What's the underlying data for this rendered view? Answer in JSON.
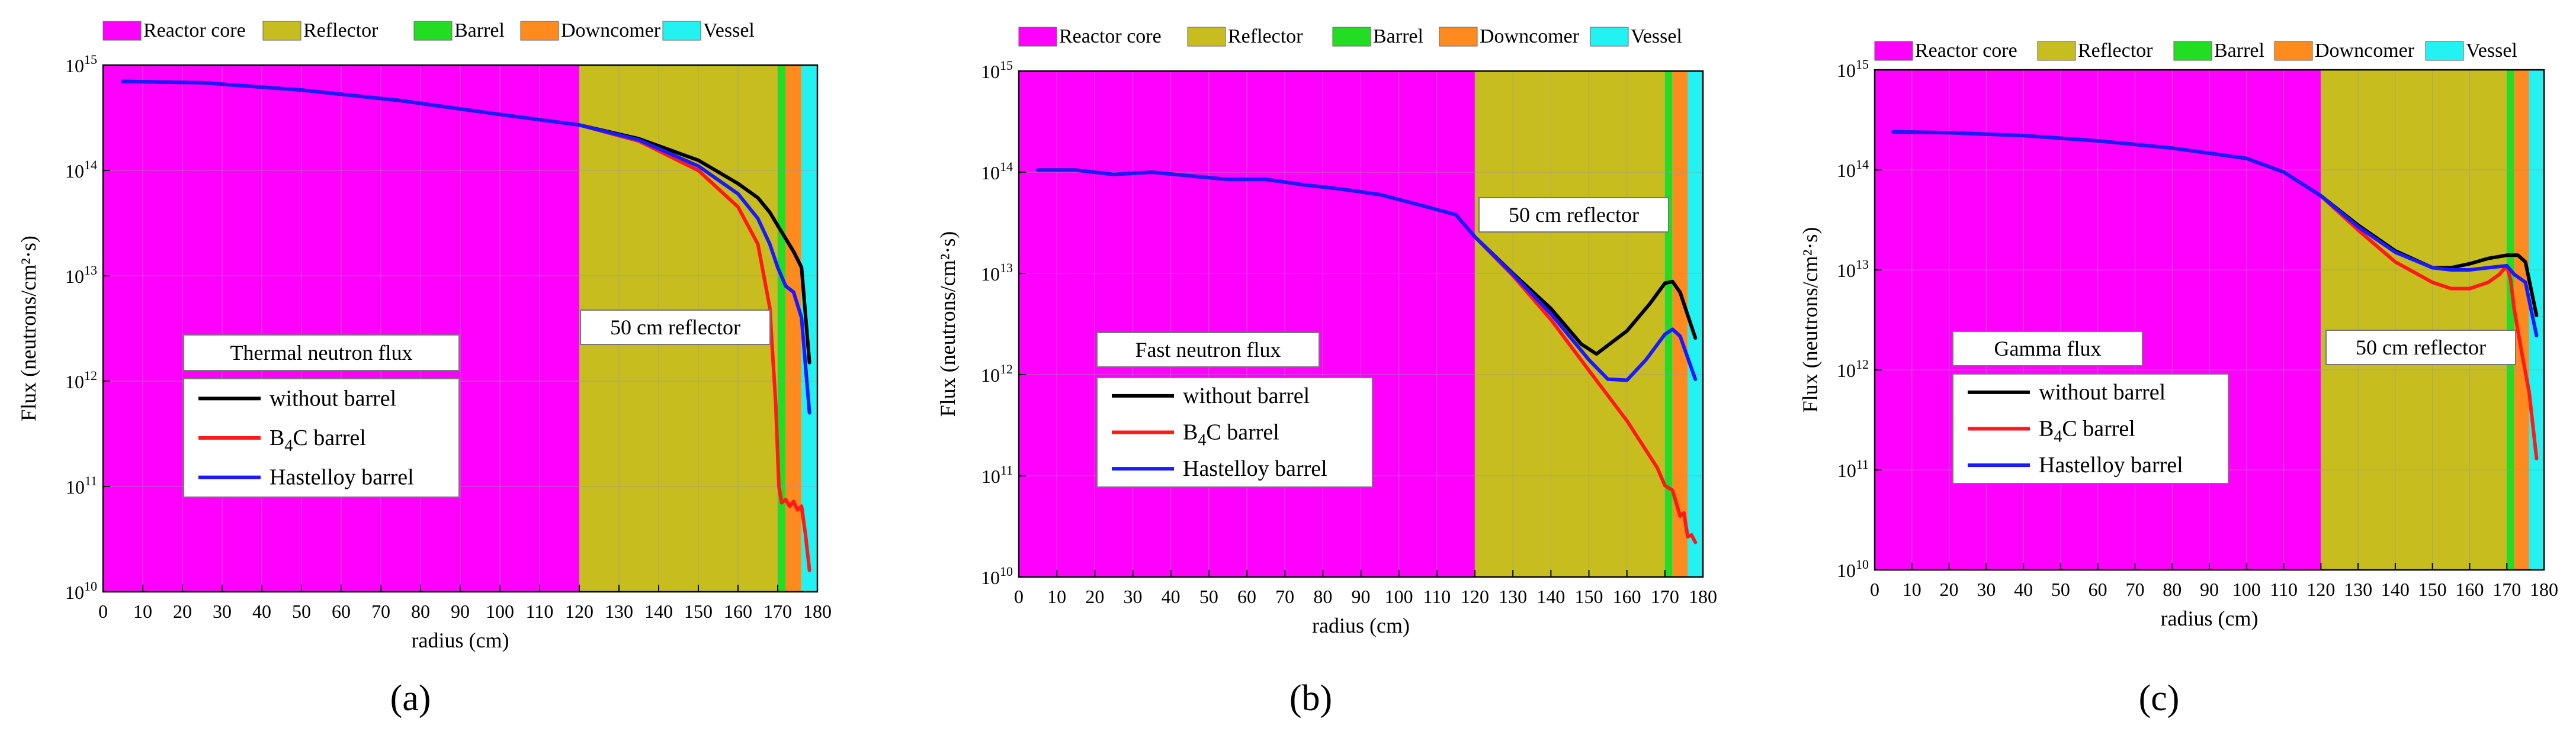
{
  "zones": [
    {
      "name": "Reactor core",
      "color": "#ff00ff",
      "from": 0,
      "to": 120
    },
    {
      "name": "Reflector",
      "color": "#c8bd1e",
      "from": 120,
      "to": 170
    },
    {
      "name": "Barrel",
      "color": "#22dd22",
      "from": 170,
      "to": 172
    },
    {
      "name": "Downcomer",
      "color": "#ff8a1e",
      "from": 172,
      "to": 176
    },
    {
      "name": "Vessel",
      "color": "#22f2f2",
      "from": 176,
      "to": 180
    }
  ],
  "series_styles": [
    {
      "key": "without",
      "label": "without barrel",
      "color": "#000000"
    },
    {
      "key": "b4c",
      "label_pre": "B",
      "label_sub": "4",
      "label_post": "C barrel",
      "color": "#ff1a1a"
    },
    {
      "key": "hast",
      "label": "Hastelloy barrel",
      "color": "#1a1aff"
    }
  ],
  "chart_data": [
    {
      "type": "line",
      "panel_label": "(a)",
      "title": "Thermal neutron flux",
      "annotation": "50 cm reflector",
      "xlabel": "radius (cm)",
      "ylabel": "Flux (neutrons/cm²·s)",
      "yscale": "log",
      "xlim": [
        0,
        180
      ],
      "ylim": [
        10000000000.0,
        1000000000000000.0
      ],
      "xticks": [
        0,
        10,
        20,
        30,
        40,
        50,
        60,
        70,
        80,
        90,
        100,
        110,
        120,
        130,
        140,
        150,
        160,
        170,
        180
      ],
      "ytick_exponents": [
        10,
        11,
        12,
        13,
        14,
        15
      ],
      "series": [
        {
          "name": "without barrel",
          "x": [
            5,
            25,
            50,
            75,
            100,
            120,
            135,
            150,
            160,
            165,
            168,
            171,
            174,
            176,
            178
          ],
          "y": [
            700000000000000.0,
            680000000000000.0,
            580000000000000.0,
            460000000000000.0,
            340000000000000.0,
            270000000000000.0,
            200000000000000.0,
            125000000000000.0,
            75000000000000.0,
            55000000000000.0,
            40000000000000.0,
            26000000000000.0,
            17000000000000.0,
            12000000000000.0,
            1500000000000.0
          ]
        },
        {
          "name": "B4C barrel",
          "x": [
            5,
            25,
            50,
            75,
            100,
            120,
            135,
            150,
            160,
            165,
            168,
            169.5,
            170.3,
            171,
            172,
            173,
            174,
            175,
            176,
            177,
            178
          ],
          "y": [
            700000000000000.0,
            680000000000000.0,
            580000000000000.0,
            460000000000000.0,
            340000000000000.0,
            270000000000000.0,
            190000000000000.0,
            100000000000000.0,
            45000000000000.0,
            20000000000000.0,
            5000000000000.0,
            600000000000.0,
            100000000000.0,
            70000000000.0,
            75000000000.0,
            65000000000.0,
            72000000000.0,
            60000000000.0,
            65000000000.0,
            35000000000.0,
            16000000000.0
          ]
        },
        {
          "name": "Hastelloy barrel",
          "x": [
            5,
            25,
            50,
            75,
            100,
            120,
            135,
            150,
            160,
            165,
            168,
            170,
            172,
            174,
            176,
            178
          ],
          "y": [
            700000000000000.0,
            680000000000000.0,
            580000000000000.0,
            460000000000000.0,
            340000000000000.0,
            270000000000000.0,
            195000000000000.0,
            110000000000000.0,
            60000000000000.0,
            35000000000000.0,
            20000000000000.0,
            12000000000000.0,
            8000000000000.0,
            7000000000000.0,
            4000000000000.0,
            500000000000.0
          ]
        }
      ]
    },
    {
      "type": "line",
      "panel_label": "(b)",
      "title": "Fast neutron flux",
      "annotation": "50 cm reflector",
      "xlabel": "radius (cm)",
      "ylabel": "Flux (neutrons/cm²·s)",
      "yscale": "log",
      "xlim": [
        0,
        180
      ],
      "ylim": [
        10000000000.0,
        1000000000000000.0
      ],
      "xticks": [
        0,
        10,
        20,
        30,
        40,
        50,
        60,
        70,
        80,
        90,
        100,
        110,
        120,
        130,
        140,
        150,
        160,
        170,
        180
      ],
      "ytick_exponents": [
        10,
        11,
        12,
        13,
        14,
        15
      ],
      "series": [
        {
          "name": "without barrel",
          "x": [
            5,
            15,
            25,
            35,
            45,
            55,
            65,
            75,
            85,
            95,
            105,
            115,
            120,
            130,
            140,
            148,
            152,
            160,
            166,
            170,
            172,
            174,
            178
          ],
          "y": [
            105000000000000.0,
            105000000000000.0,
            95000000000000.0,
            100000000000000.0,
            92000000000000.0,
            85000000000000.0,
            85000000000000.0,
            75000000000000.0,
            68000000000000.0,
            60000000000000.0,
            48000000000000.0,
            38000000000000.0,
            23000000000000.0,
            10000000000000.0,
            4500000000000.0,
            2000000000000.0,
            1600000000000.0,
            2700000000000.0,
            5000000000000.0,
            8000000000000.0,
            8300000000000.0,
            6500000000000.0,
            2300000000000.0
          ]
        },
        {
          "name": "B4C barrel",
          "x": [
            5,
            15,
            25,
            35,
            45,
            55,
            65,
            75,
            85,
            95,
            105,
            115,
            120,
            130,
            140,
            150,
            160,
            168,
            170,
            172,
            174,
            175,
            176,
            177,
            178
          ],
          "y": [
            105000000000000.0,
            105000000000000.0,
            95000000000000.0,
            100000000000000.0,
            92000000000000.0,
            85000000000000.0,
            85000000000000.0,
            75000000000000.0,
            68000000000000.0,
            60000000000000.0,
            48000000000000.0,
            38000000000000.0,
            23000000000000.0,
            9500000000000.0,
            3500000000000.0,
            1100000000000.0,
            350000000000.0,
            120000000000.0,
            80000000000.0,
            72000000000.0,
            40000000000.0,
            43000000000.0,
            25000000000.0,
            26000000000.0,
            22000000000.0
          ]
        },
        {
          "name": "Hastelloy barrel",
          "x": [
            5,
            15,
            25,
            35,
            45,
            55,
            65,
            75,
            85,
            95,
            105,
            115,
            120,
            130,
            140,
            150,
            155,
            160,
            165,
            170,
            172,
            174,
            178
          ],
          "y": [
            105000000000000.0,
            105000000000000.0,
            95000000000000.0,
            100000000000000.0,
            92000000000000.0,
            85000000000000.0,
            85000000000000.0,
            75000000000000.0,
            68000000000000.0,
            60000000000000.0,
            48000000000000.0,
            38000000000000.0,
            23000000000000.0,
            9800000000000.0,
            4000000000000.0,
            1400000000000.0,
            900000000000.0,
            880000000000.0,
            1400000000000.0,
            2500000000000.0,
            2800000000000.0,
            2400000000000.0,
            900000000000.0
          ]
        }
      ]
    },
    {
      "type": "line",
      "panel_label": "(c)",
      "title": "Gamma flux",
      "annotation": "50 cm reflector",
      "xlabel": "radius (cm)",
      "ylabel": "Flux (neutrons/cm²·s)",
      "yscale": "log",
      "xlim": [
        0,
        180
      ],
      "ylim": [
        10000000000.0,
        1000000000000000.0
      ],
      "xticks": [
        0,
        10,
        20,
        30,
        40,
        50,
        60,
        70,
        80,
        90,
        100,
        110,
        120,
        130,
        140,
        150,
        160,
        170,
        180
      ],
      "ytick_exponents": [
        10,
        11,
        12,
        13,
        14,
        15
      ],
      "series": [
        {
          "name": "without barrel",
          "x": [
            5,
            20,
            40,
            60,
            80,
            100,
            110,
            120,
            130,
            140,
            150,
            155,
            160,
            165,
            170,
            173,
            175,
            178
          ],
          "y": [
            240000000000000.0,
            235000000000000.0,
            220000000000000.0,
            195000000000000.0,
            165000000000000.0,
            130000000000000.0,
            95000000000000.0,
            55000000000000.0,
            28000000000000.0,
            15500000000000.0,
            10500000000000.0,
            10500000000000.0,
            11500000000000.0,
            13000000000000.0,
            14000000000000.0,
            14000000000000.0,
            12000000000000.0,
            3500000000000.0
          ]
        },
        {
          "name": "B4C barrel",
          "x": [
            5,
            20,
            40,
            60,
            80,
            100,
            110,
            120,
            130,
            140,
            150,
            155,
            160,
            165,
            168,
            170,
            171,
            172,
            174,
            176,
            178
          ],
          "y": [
            240000000000000.0,
            235000000000000.0,
            220000000000000.0,
            195000000000000.0,
            165000000000000.0,
            130000000000000.0,
            95000000000000.0,
            55000000000000.0,
            25000000000000.0,
            12000000000000.0,
            7500000000000.0,
            6500000000000.0,
            6500000000000.0,
            7500000000000.0,
            9000000000000.0,
            11000000000000.0,
            8000000000000.0,
            4000000000000.0,
            1500000000000.0,
            600000000000.0,
            130000000000.0
          ]
        },
        {
          "name": "Hastelloy barrel",
          "x": [
            5,
            20,
            40,
            60,
            80,
            100,
            110,
            120,
            130,
            140,
            150,
            155,
            160,
            165,
            170,
            172,
            175,
            178
          ],
          "y": [
            240000000000000.0,
            235000000000000.0,
            220000000000000.0,
            195000000000000.0,
            165000000000000.0,
            130000000000000.0,
            95000000000000.0,
            55000000000000.0,
            27000000000000.0,
            15000000000000.0,
            10500000000000.0,
            10000000000000.0,
            10000000000000.0,
            10500000000000.0,
            11000000000000.0,
            9000000000000.0,
            7500000000000.0,
            2200000000000.0
          ]
        }
      ]
    }
  ]
}
